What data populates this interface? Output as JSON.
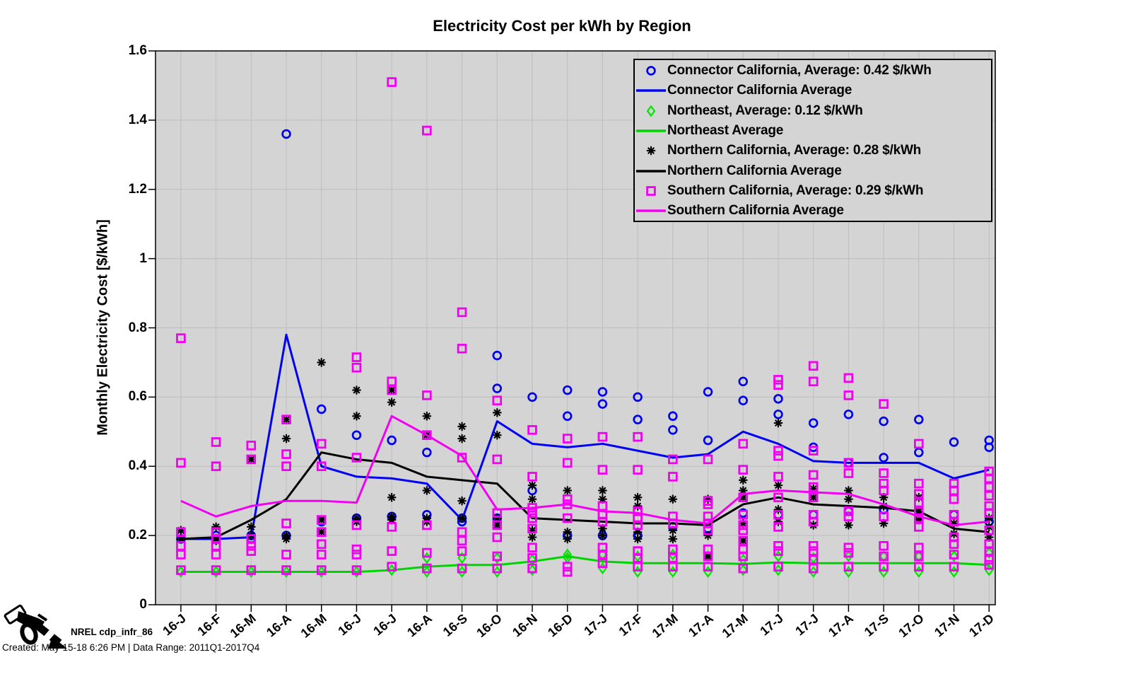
{
  "figure": {
    "title": "Electricity Cost per kWh by Region",
    "ylabel": "Monthly Electricity Cost [$/kWh]",
    "footer": {
      "logo_icon": "fuel-nozzle-icon",
      "logo_label": "NREL cdp_infr_86",
      "created_line": "Created: May-15-18  6:26 PM | Data Range: 2011Q1-2017Q4"
    },
    "colors": {
      "plot_bg": "#d4d4d4",
      "grid": "#bdbdbd",
      "axis": "#000000",
      "blue": "#0000f2",
      "green_marker": "#00e400",
      "green_line": "#00d400",
      "black": "#000000",
      "magenta": "#f200f2"
    }
  },
  "chart_data": {
    "type": "scatter",
    "title": "Electricity Cost per kWh by Region",
    "xlabel": "",
    "ylabel": "Monthly Electricity Cost [$/kWh]",
    "ylim": [
      0,
      1.6
    ],
    "grid": true,
    "legend_position": "upper right",
    "ytick_labels": [
      "0",
      "0.2",
      "0.4",
      "0.6",
      "0.8",
      "1",
      "1.2",
      "1.4",
      "1.6"
    ],
    "yticks": [
      0,
      0.2,
      0.4,
      0.6,
      0.8,
      1,
      1.2,
      1.4,
      1.6
    ],
    "months": [
      "16-J",
      "16-F",
      "16-M",
      "16-A",
      "16-M",
      "16-J",
      "16-J",
      "16-A",
      "16-S",
      "16-O",
      "16-N",
      "16-D",
      "17-J",
      "17-F",
      "17-M",
      "17-A",
      "17-M",
      "17-J",
      "17-J",
      "17-A",
      "17-S",
      "17-O",
      "17-N",
      "17-D"
    ],
    "series": [
      {
        "name": "Connector California, Average: 0.42 $/kWh",
        "kind": "scatter",
        "marker": "circle",
        "color": "#0000f2",
        "points_by_month": [
          [
            0.2,
            0.19
          ],
          [
            0.2,
            0.19
          ],
          [
            0.2,
            0.19
          ],
          [
            1.36,
            0.2
          ],
          [
            0.565,
            0.24
          ],
          [
            0.49,
            0.25
          ],
          [
            0.475,
            0.255
          ],
          [
            0.44,
            0.26
          ],
          [
            0.25,
            0.24
          ],
          [
            0.72,
            0.625,
            0.25
          ],
          [
            0.6,
            0.33
          ],
          [
            0.62,
            0.545,
            0.2
          ],
          [
            0.615,
            0.58,
            0.2
          ],
          [
            0.6,
            0.535,
            0.2
          ],
          [
            0.545,
            0.505,
            0.225
          ],
          [
            0.615,
            0.475,
            0.22
          ],
          [
            0.645,
            0.59,
            0.265
          ],
          [
            0.595,
            0.55,
            0.26
          ],
          [
            0.525,
            0.455,
            0.26
          ],
          [
            0.55,
            0.41,
            0.27
          ],
          [
            0.53,
            0.425,
            0.275
          ],
          [
            0.535,
            0.44,
            0.255
          ],
          [
            0.47,
            0.26
          ],
          [
            0.475,
            0.455,
            0.24
          ]
        ]
      },
      {
        "name": "Connector California Average",
        "kind": "line",
        "color": "#0000f2",
        "values": [
          0.19,
          0.19,
          0.195,
          0.78,
          0.4,
          0.37,
          0.365,
          0.35,
          0.245,
          0.53,
          0.465,
          0.455,
          0.465,
          0.445,
          0.425,
          0.435,
          0.5,
          0.465,
          0.415,
          0.41,
          0.41,
          0.41,
          0.365,
          0.39
        ]
      },
      {
        "name": "Northeast, Average: 0.12 $/kWh",
        "kind": "scatter",
        "marker": "diamond",
        "color": "#00e400",
        "points_by_month": [
          [
            0.095
          ],
          [
            0.095
          ],
          [
            0.095
          ],
          [
            0.095
          ],
          [
            0.095
          ],
          [
            0.095
          ],
          [
            0.1
          ],
          [
            0.135,
            0.095
          ],
          [
            0.135,
            0.095
          ],
          [
            0.135,
            0.095
          ],
          [
            0.13,
            0.1
          ],
          [
            0.145,
            0.135
          ],
          [
            0.145,
            0.105
          ],
          [
            0.14,
            0.095
          ],
          [
            0.145,
            0.095
          ],
          [
            0.14,
            0.095
          ],
          [
            0.13,
            0.1
          ],
          [
            0.14,
            0.1
          ],
          [
            0.135,
            0.095
          ],
          [
            0.14,
            0.095
          ],
          [
            0.14,
            0.095
          ],
          [
            0.14,
            0.095
          ],
          [
            0.14,
            0.095
          ],
          [
            0.15,
            0.1
          ]
        ]
      },
      {
        "name": "Northeast Average",
        "kind": "line",
        "color": "#00d400",
        "values": [
          0.095,
          0.095,
          0.095,
          0.095,
          0.095,
          0.095,
          0.1,
          0.11,
          0.115,
          0.115,
          0.125,
          0.14,
          0.125,
          0.12,
          0.12,
          0.12,
          0.118,
          0.122,
          0.12,
          0.12,
          0.12,
          0.12,
          0.12,
          0.115
        ]
      },
      {
        "name": "Northern California, Average: 0.28 $/kWh",
        "kind": "scatter",
        "marker": "asterisk",
        "color": "#000000",
        "points_by_month": [
          [
            0.215,
            0.19
          ],
          [
            0.225,
            0.185
          ],
          [
            0.42,
            0.225,
            0.2
          ],
          [
            0.535,
            0.48,
            0.2,
            0.19
          ],
          [
            0.7,
            0.245,
            0.21
          ],
          [
            0.62,
            0.545,
            0.25,
            0.24
          ],
          [
            0.62,
            0.585,
            0.31,
            0.255,
            0.245
          ],
          [
            0.545,
            0.49,
            0.33,
            0.25,
            0.24
          ],
          [
            0.515,
            0.48,
            0.3,
            0.25
          ],
          [
            0.555,
            0.49,
            0.25,
            0.23
          ],
          [
            0.345,
            0.305,
            0.215,
            0.195
          ],
          [
            0.33,
            0.21,
            0.19
          ],
          [
            0.33,
            0.305,
            0.22,
            0.2
          ],
          [
            0.31,
            0.285,
            0.21,
            0.19
          ],
          [
            0.305,
            0.215,
            0.19
          ],
          [
            0.305,
            0.2,
            0.14
          ],
          [
            0.36,
            0.33,
            0.31,
            0.235,
            0.185
          ],
          [
            0.525,
            0.345,
            0.275,
            0.24
          ],
          [
            0.335,
            0.31,
            0.23
          ],
          [
            0.33,
            0.305,
            0.23
          ],
          [
            0.31,
            0.285,
            0.235
          ],
          [
            0.31,
            0.27,
            0.245
          ],
          [
            0.235,
            0.205
          ],
          [
            0.25,
            0.225,
            0.195
          ]
        ]
      },
      {
        "name": "Northern California Average",
        "kind": "line",
        "color": "#000000",
        "values": [
          0.19,
          0.195,
          0.245,
          0.305,
          0.44,
          0.42,
          0.41,
          0.37,
          0.36,
          0.35,
          0.25,
          0.245,
          0.24,
          0.235,
          0.235,
          0.23,
          0.29,
          0.31,
          0.29,
          0.285,
          0.28,
          0.27,
          0.22,
          0.21
        ]
      },
      {
        "name": "Southern California, Average: 0.29 $/kWh",
        "kind": "scatter",
        "marker": "square",
        "color": "#f200f2",
        "points_by_month": [
          [
            0.77,
            0.41,
            0.21,
            0.17,
            0.145,
            0.1
          ],
          [
            0.47,
            0.4,
            0.21,
            0.19,
            0.17,
            0.145,
            0.1
          ],
          [
            0.46,
            0.42,
            0.19,
            0.17,
            0.155,
            0.1
          ],
          [
            0.535,
            0.435,
            0.4,
            0.235,
            0.145,
            0.1
          ],
          [
            0.465,
            0.4,
            0.245,
            0.21,
            0.175,
            0.145,
            0.1
          ],
          [
            0.715,
            0.685,
            0.425,
            0.23,
            0.16,
            0.145,
            0.1
          ],
          [
            1.51,
            0.645,
            0.62,
            0.225,
            0.155,
            0.11
          ],
          [
            1.37,
            0.605,
            0.49,
            0.23,
            0.15,
            0.105
          ],
          [
            0.845,
            0.74,
            0.425,
            0.21,
            0.185,
            0.155,
            0.105
          ],
          [
            0.59,
            0.42,
            0.265,
            0.23,
            0.195,
            0.14,
            0.105
          ],
          [
            0.505,
            0.37,
            0.28,
            0.265,
            0.25,
            0.22,
            0.165,
            0.135,
            0.105
          ],
          [
            0.48,
            0.41,
            0.305,
            0.29,
            0.25,
            0.11,
            0.095
          ],
          [
            0.485,
            0.39,
            0.285,
            0.26,
            0.24,
            0.165,
            0.145,
            0.12
          ],
          [
            0.485,
            0.39,
            0.27,
            0.25,
            0.23,
            0.155,
            0.135,
            0.11
          ],
          [
            0.42,
            0.37,
            0.255,
            0.235,
            0.16,
            0.135,
            0.11
          ],
          [
            0.42,
            0.3,
            0.29,
            0.255,
            0.235,
            0.215,
            0.16,
            0.14,
            0.11
          ],
          [
            0.465,
            0.39,
            0.31,
            0.26,
            0.23,
            0.215,
            0.185,
            0.16,
            0.14,
            0.105
          ],
          [
            0.65,
            0.635,
            0.445,
            0.43,
            0.37,
            0.31,
            0.26,
            0.225,
            0.17,
            0.155,
            0.11
          ],
          [
            0.69,
            0.645,
            0.445,
            0.375,
            0.34,
            0.31,
            0.26,
            0.24,
            0.17,
            0.155,
            0.13,
            0.105
          ],
          [
            0.655,
            0.605,
            0.41,
            0.38,
            0.27,
            0.255,
            0.165,
            0.15,
            0.11
          ],
          [
            0.58,
            0.38,
            0.35,
            0.33,
            0.255,
            0.17,
            0.14,
            0.11
          ],
          [
            0.465,
            0.35,
            0.32,
            0.295,
            0.27,
            0.25,
            0.225,
            0.165,
            0.14,
            0.11
          ],
          [
            0.35,
            0.33,
            0.305,
            0.26,
            0.24,
            0.195,
            0.175,
            0.145,
            0.11
          ],
          [
            0.385,
            0.365,
            0.34,
            0.315,
            0.285,
            0.265,
            0.215,
            0.175,
            0.155,
            0.13,
            0.115
          ]
        ]
      },
      {
        "name": "Southern California Average",
        "kind": "line",
        "color": "#f200f2",
        "values": [
          0.3,
          0.255,
          0.285,
          0.3,
          0.3,
          0.295,
          0.545,
          0.49,
          0.43,
          0.275,
          0.28,
          0.29,
          0.27,
          0.265,
          0.245,
          0.235,
          0.32,
          0.33,
          0.325,
          0.32,
          0.29,
          0.255,
          0.23,
          0.24
        ]
      }
    ]
  }
}
